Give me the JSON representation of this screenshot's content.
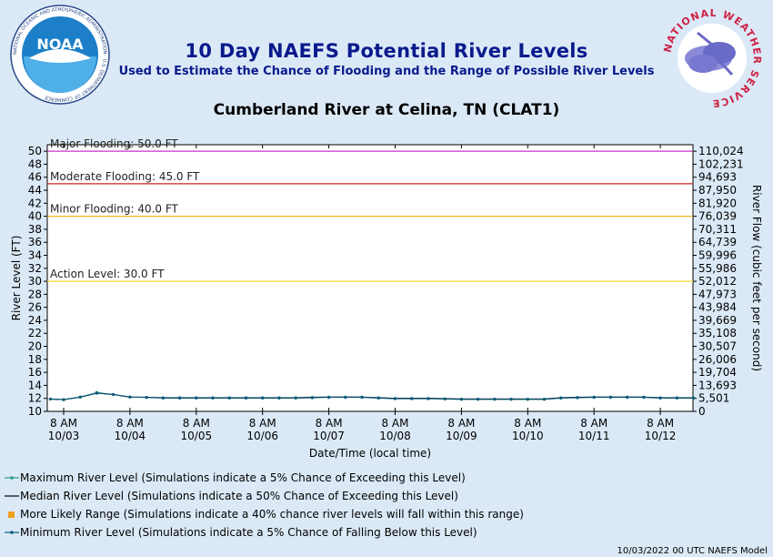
{
  "header": {
    "title": "10 Day NAEFS Potential River Levels",
    "subtitle": "Used to Estimate the Chance of Flooding and the Range of Possible River Levels",
    "station": "Cumberland River at Celina, TN (CLAT1)",
    "noaa_logo_text": "NOAA",
    "noaa_ring_text": "NATIONAL OCEANIC AND ATMOSPHERIC ADMINISTRATION · U.S. DEPARTMENT OF COMMERCE",
    "nws_logo_text": "NATIONAL WEATHER SERVICE"
  },
  "footer": "10/03/2022 00 UTC NAEFS Model",
  "colors": {
    "background": "#dbe9f7",
    "plot_bg": "#ffffff",
    "major": "#cc33cc",
    "moderate": "#cc2222",
    "minor": "#e8b820",
    "action": "#f0e040",
    "max_line": "#2a9d8f",
    "median_line": "#000000",
    "likely_range": "#f0a020",
    "min_line": "#0a5a7a"
  },
  "legend": [
    {
      "key": "max",
      "label": "Maximum River Level (Simulations indicate a 5% Chance of Exceeding this Level)"
    },
    {
      "key": "median",
      "label": "Median River Level (Simulations indicate a 50% Chance of Exceeding this Level)"
    },
    {
      "key": "likely",
      "label": "More Likely Range (Simulations indicate a 40% chance river levels will fall within this range)"
    },
    {
      "key": "min",
      "label": "Minimum River Level (Simulations indicate a 5% Chance of Falling Below this Level)"
    }
  ],
  "chart_data": {
    "type": "line",
    "xlabel": "Date/Time (local time)",
    "ylabel": "River Level (FT)",
    "y2label": "River Flow (cubic feet per second)",
    "ylim": [
      10,
      51
    ],
    "yticks": [
      10,
      12,
      14,
      16,
      18,
      20,
      22,
      24,
      26,
      28,
      30,
      32,
      34,
      36,
      38,
      40,
      42,
      44,
      46,
      48,
      50
    ],
    "y2ticks": [
      "0",
      "5,501",
      "13,693",
      "19,704",
      "26,006",
      "30,507",
      "35,108",
      "39,669",
      "43,984",
      "47,973",
      "52,012",
      "55,986",
      "59,996",
      "64,739",
      "70,311",
      "76,039",
      "81,920",
      "87,950",
      "94,693",
      "102,231",
      "110,024"
    ],
    "xlim_days": [
      0,
      10
    ],
    "xticks": [
      {
        "line1": "8 AM",
        "line2": "10/03"
      },
      {
        "line1": "8 AM",
        "line2": "10/04"
      },
      {
        "line1": "8 AM",
        "line2": "10/05"
      },
      {
        "line1": "8 AM",
        "line2": "10/06"
      },
      {
        "line1": "8 AM",
        "line2": "10/07"
      },
      {
        "line1": "8 AM",
        "line2": "10/08"
      },
      {
        "line1": "8 AM",
        "line2": "10/09"
      },
      {
        "line1": "8 AM",
        "line2": "10/10"
      },
      {
        "line1": "8 AM",
        "line2": "10/11"
      },
      {
        "line1": "8 AM",
        "line2": "10/12"
      }
    ],
    "thresholds": [
      {
        "name": "major",
        "label": "Major Flooding: 50.0 FT",
        "value": 50.0
      },
      {
        "name": "moderate",
        "label": "Moderate Flooding: 45.0 FT",
        "value": 45.0
      },
      {
        "name": "minor",
        "label": "Minor Flooding: 40.0 FT",
        "value": 40.0
      },
      {
        "name": "action",
        "label": "Action Level: 30.0 FT",
        "value": 30.0
      }
    ],
    "series": [
      {
        "name": "Maximum River Level",
        "x": [
          -0.2,
          0.0,
          0.25,
          0.5,
          0.75,
          1.0,
          1.25,
          1.5,
          1.75,
          2.0,
          2.25,
          2.5,
          2.75,
          3.0,
          3.25,
          3.5,
          3.75,
          4.0,
          4.25,
          4.5,
          4.75,
          5.0,
          5.25,
          5.5,
          5.75,
          6.0,
          6.25,
          6.5,
          6.75,
          7.0,
          7.25,
          7.5,
          7.75,
          8.0,
          8.25,
          8.5,
          8.75,
          9.0,
          9.25,
          9.5
        ],
        "y": [
          11.9,
          11.8,
          12.2,
          12.9,
          12.6,
          12.2,
          12.15,
          12.1,
          12.1,
          12.1,
          12.1,
          12.1,
          12.1,
          12.1,
          12.1,
          12.1,
          12.15,
          12.2,
          12.2,
          12.2,
          12.1,
          12.0,
          12.0,
          12.0,
          11.95,
          11.9,
          11.9,
          11.9,
          11.9,
          11.9,
          11.9,
          12.1,
          12.15,
          12.2,
          12.2,
          12.2,
          12.2,
          12.1,
          12.1,
          12.1
        ]
      },
      {
        "name": "Median River Level",
        "x": [
          -0.2,
          0.0,
          0.25,
          0.5,
          0.75,
          1.0,
          1.25,
          1.5,
          1.75,
          2.0,
          2.25,
          2.5,
          2.75,
          3.0,
          3.25,
          3.5,
          3.75,
          4.0,
          4.25,
          4.5,
          4.75,
          5.0,
          5.25,
          5.5,
          5.75,
          6.0,
          6.25,
          6.5,
          6.75,
          7.0,
          7.25,
          7.5,
          7.75,
          8.0,
          8.25,
          8.5,
          8.75,
          9.0,
          9.25,
          9.5
        ],
        "y": [
          11.9,
          11.8,
          12.2,
          12.8,
          12.6,
          12.2,
          12.15,
          12.1,
          12.1,
          12.1,
          12.1,
          12.1,
          12.1,
          12.1,
          12.1,
          12.1,
          12.15,
          12.2,
          12.2,
          12.2,
          12.1,
          12.0,
          12.0,
          12.0,
          11.95,
          11.9,
          11.9,
          11.9,
          11.9,
          11.9,
          11.9,
          12.1,
          12.15,
          12.2,
          12.2,
          12.2,
          12.2,
          12.1,
          12.1,
          12.1
        ]
      },
      {
        "name": "Minimum River Level",
        "x": [
          -0.2,
          0.0,
          0.25,
          0.5,
          0.75,
          1.0,
          1.25,
          1.5,
          1.75,
          2.0,
          2.25,
          2.5,
          2.75,
          3.0,
          3.25,
          3.5,
          3.75,
          4.0,
          4.25,
          4.5,
          4.75,
          5.0,
          5.25,
          5.5,
          5.75,
          6.0,
          6.25,
          6.5,
          6.75,
          7.0,
          7.25,
          7.5,
          7.75,
          8.0,
          8.25,
          8.5,
          8.75,
          9.0,
          9.25,
          9.5
        ],
        "y": [
          11.9,
          11.8,
          12.2,
          12.8,
          12.6,
          12.2,
          12.15,
          12.05,
          12.05,
          12.05,
          12.05,
          12.05,
          12.05,
          12.05,
          12.05,
          12.05,
          12.1,
          12.15,
          12.15,
          12.15,
          12.05,
          11.95,
          11.95,
          11.95,
          11.9,
          11.85,
          11.85,
          11.85,
          11.85,
          11.85,
          11.85,
          12.05,
          12.1,
          12.15,
          12.15,
          12.15,
          12.15,
          12.05,
          12.05,
          12.05
        ]
      }
    ]
  }
}
